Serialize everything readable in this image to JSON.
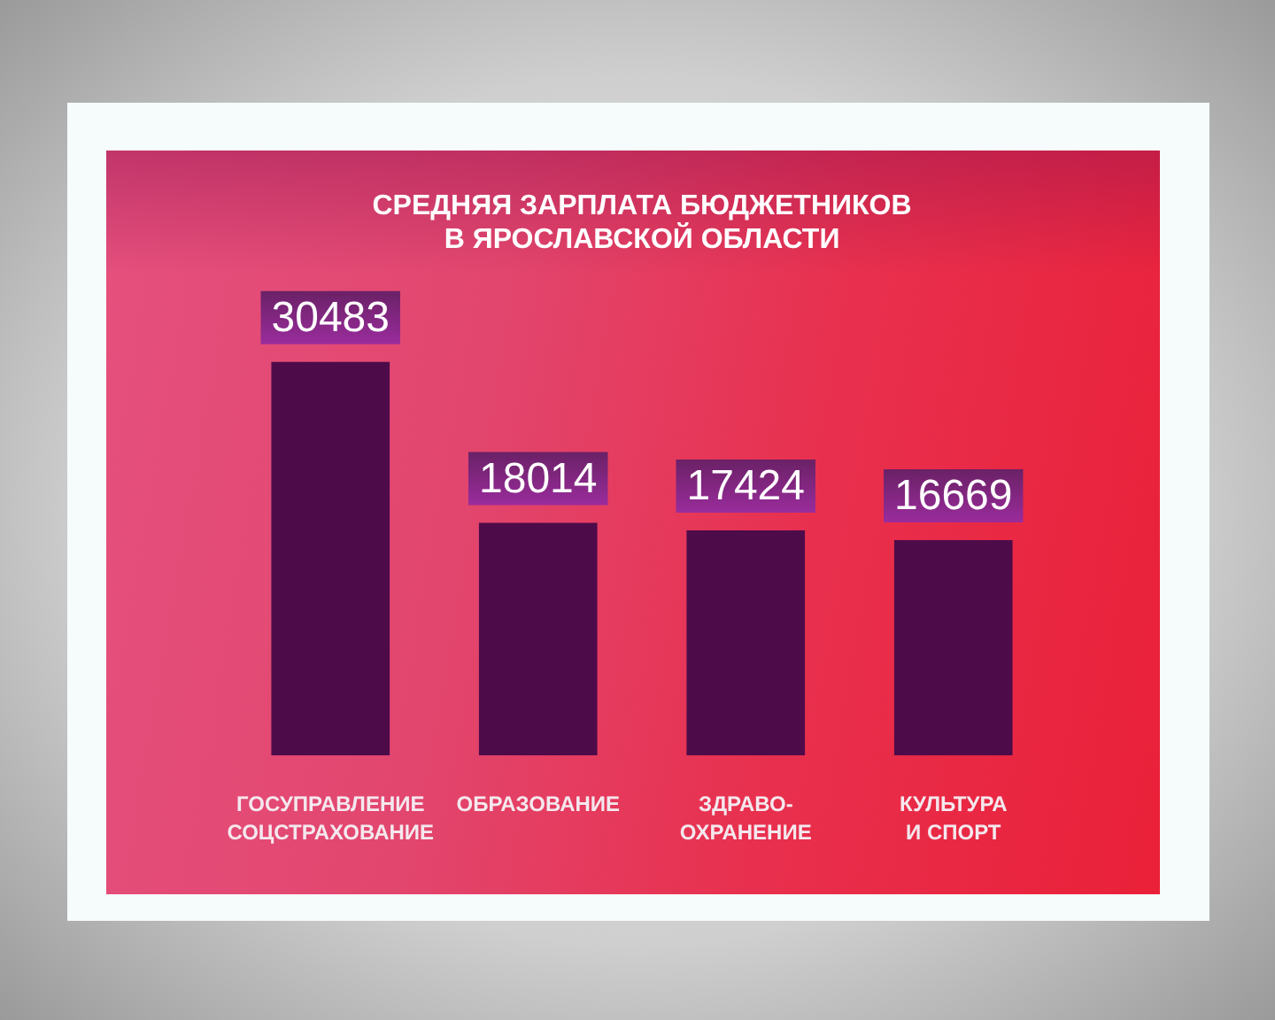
{
  "chart_data": {
    "type": "bar",
    "title": "СРЕДНЯЯ ЗАРПЛАТА БЮДЖЕТНИКОВ\nВ ЯРОСЛАВСКОЙ ОБЛАСТИ",
    "categories": [
      "ГОСУПРАВЛЕНИЕ\nСОЦСТРАХОВАНИЕ",
      "ОБРАЗОВАНИЕ",
      "ЗДРАВО-\nОХРАНЕНИЕ",
      "КУЛЬТУРА\nИ СПОРТ"
    ],
    "values": [
      30483,
      18014,
      17424,
      16669
    ],
    "color": "#4e0b4a",
    "data_labels": true
  }
}
